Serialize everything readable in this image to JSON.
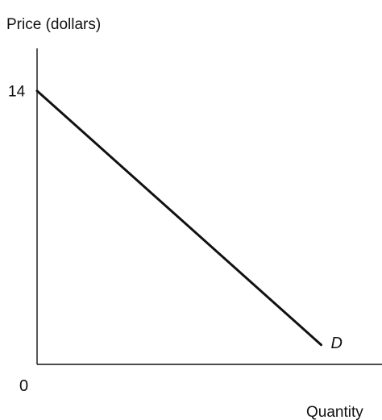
{
  "chart_data": {
    "type": "line",
    "title": "",
    "xlabel": "Quantity",
    "ylabel": "Price (dollars)",
    "origin_label": "0",
    "y_ticks": [
      {
        "value": 14,
        "label": "14"
      }
    ],
    "series": [
      {
        "name": "D",
        "points": [
          {
            "x": 0,
            "y": 14
          },
          {
            "x": 14,
            "y": 1
          }
        ]
      }
    ],
    "xlim": [
      0,
      17
    ],
    "ylim": [
      0,
      17
    ],
    "grid": false,
    "colors": {
      "axis": "#111111",
      "line": "#111111"
    }
  }
}
